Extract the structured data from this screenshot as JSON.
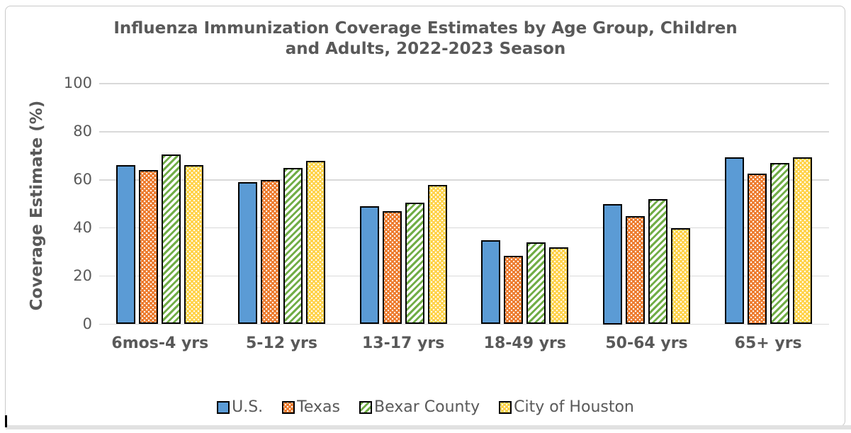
{
  "title": {
    "line1": "Influenza Immunization Coverage Estimates by Age Group, Children",
    "line2": "and Adults, 2022-2023 Season"
  },
  "colors": {
    "text_gray": "#595959",
    "gridline": "#d9d9d9",
    "frame_border": "#c9c9c9",
    "bar_outline": "#000000",
    "us_blue": "#5b9bd5",
    "texas_orange": "#ed7d31",
    "bexar_green": "#71ad47",
    "houston_yellow": "#ffd34d"
  },
  "chart_data": {
    "type": "bar",
    "title": "Influenza Immunization Coverage Estimates by Age Group, Children and Adults, 2022-2023 Season",
    "xlabel": "",
    "ylabel": "Coverage Estimate (%)",
    "ylim": [
      0,
      100
    ],
    "yticks": [
      0,
      20,
      40,
      60,
      80,
      100
    ],
    "grid": true,
    "legend_position": "bottom",
    "categories": [
      "6mos-4 yrs",
      "5-12 yrs",
      "13-17 yrs",
      "18-49 yrs",
      "50-64 yrs",
      "65+ yrs"
    ],
    "series": [
      {
        "name": "U.S.",
        "color": "#5b9bd5",
        "pattern": "solid",
        "values": [
          66,
          59,
          49,
          35,
          50,
          69.5
        ]
      },
      {
        "name": "Texas",
        "color": "#ed7d31",
        "pattern": "white-dots",
        "values": [
          64,
          60,
          47,
          28.5,
          45,
          62.5
        ]
      },
      {
        "name": "Bexar County",
        "color": "#71ad47",
        "pattern": "diagonal-stripes",
        "values": [
          70.5,
          65,
          50.5,
          34,
          52,
          67
        ]
      },
      {
        "name": "City of Houston",
        "color": "#ffd34d",
        "pattern": "white-dots",
        "values": [
          66,
          68,
          58,
          32,
          40,
          69.5
        ]
      }
    ]
  }
}
